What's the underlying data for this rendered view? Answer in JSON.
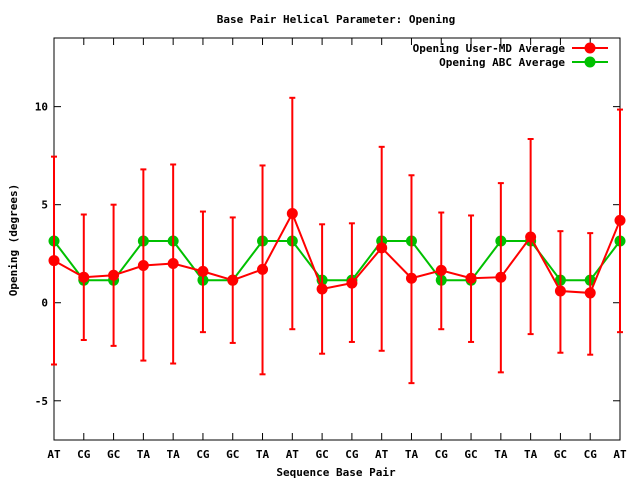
{
  "chart_data": {
    "type": "line",
    "title": "Base Pair Helical Parameter: Opening",
    "xlabel": "Sequence Base Pair",
    "ylabel": "Opening (degrees)",
    "ylim": [
      -7,
      13.5
    ],
    "yticks": [
      -5,
      0,
      5,
      10
    ],
    "grid": false,
    "legend_position": "top-right",
    "categories": [
      "AT",
      "CG",
      "GC",
      "TA",
      "TA",
      "CG",
      "GC",
      "TA",
      "AT",
      "GC",
      "CG",
      "AT",
      "TA",
      "CG",
      "GC",
      "TA",
      "TA",
      "GC",
      "CG",
      "AT"
    ],
    "series": [
      {
        "name": "Opening User-MD Average",
        "color": "#ff0000",
        "values": [
          2.15,
          1.3,
          1.4,
          1.9,
          2.0,
          1.6,
          1.15,
          1.7,
          4.55,
          0.7,
          1.0,
          2.8,
          1.25,
          1.65,
          1.25,
          1.3,
          3.35,
          0.6,
          0.5,
          4.2
        ],
        "error_low": [
          -3.15,
          -1.9,
          -2.2,
          -2.95,
          -3.1,
          -1.5,
          -2.05,
          -3.65,
          -1.35,
          -2.6,
          -2.0,
          -2.45,
          -4.1,
          -1.35,
          -2.0,
          -3.55,
          -1.6,
          -2.55,
          -2.65,
          -1.5
        ],
        "error_high": [
          7.45,
          4.5,
          5.0,
          6.8,
          7.05,
          4.65,
          4.35,
          7.0,
          10.45,
          4.0,
          4.05,
          7.95,
          6.5,
          4.6,
          4.45,
          6.1,
          8.35,
          3.65,
          3.55,
          9.85
        ]
      },
      {
        "name": "Opening ABC Average",
        "color": "#00c000",
        "values": [
          3.15,
          1.15,
          1.15,
          3.15,
          3.15,
          1.15,
          1.15,
          3.15,
          3.15,
          1.15,
          1.15,
          3.15,
          3.15,
          1.15,
          1.15,
          3.15,
          3.15,
          1.15,
          1.15,
          3.15
        ]
      }
    ]
  }
}
